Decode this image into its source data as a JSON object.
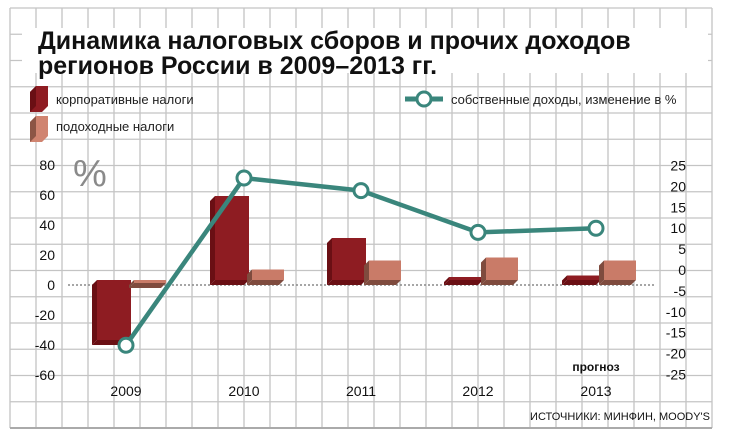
{
  "chart_data": {
    "type": "bar",
    "title_line1": "Динамика налоговых сборов и прочих доходов",
    "title_line2": "регионов России в 2009–2013 гг.",
    "categories": [
      "2009",
      "2010",
      "2011",
      "2012",
      "2013"
    ],
    "forecast_label": "прогноз",
    "left_axis_unit": "%",
    "left_axis": {
      "range": [
        -60,
        80
      ],
      "ticks": [
        "80",
        "60",
        "40",
        "20",
        "0",
        "-20",
        "-40",
        "-60"
      ]
    },
    "right_axis": {
      "range": [
        -25,
        25
      ],
      "ticks": [
        "25",
        "20",
        "15",
        "10",
        "5",
        "0",
        "-5",
        "-10",
        "-15",
        "-20",
        "-25"
      ]
    },
    "series": [
      {
        "name": "корпоративные налоги",
        "type": "bar",
        "axis": "left",
        "color": "#8e1c22",
        "values": [
          -40,
          56,
          28,
          2,
          3
        ]
      },
      {
        "name": "подоходные налоги",
        "type": "bar",
        "axis": "left",
        "color": "#c97b68",
        "values": [
          -2,
          7,
          13,
          15,
          13
        ]
      },
      {
        "name": "собственные доходы, изменение в %",
        "type": "line",
        "axis": "right",
        "color": "#3a867c",
        "values": [
          -18,
          22,
          19,
          9,
          10
        ]
      }
    ],
    "source": "ИСТОЧНИКИ: МИНФИН, MOODY'S",
    "grid": true,
    "legend_position": "top"
  }
}
